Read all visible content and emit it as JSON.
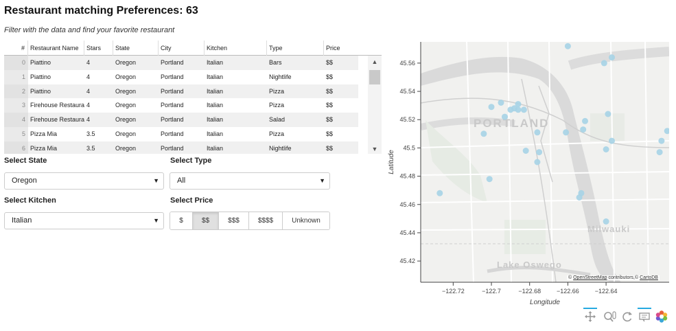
{
  "header": {
    "title": "Restaurant matching Preferences: 63",
    "subtitle": "Filter with the data and find your favorite restaurant"
  },
  "table": {
    "columns": [
      "#",
      "Restaurant Name",
      "Stars",
      "State",
      "City",
      "Kitchen",
      "Type",
      "Price"
    ],
    "rows": [
      {
        "idx": "0",
        "name": "Piattino",
        "stars": "4",
        "state": "Oregon",
        "city": "Portland",
        "kitchen": "Italian",
        "type": "Bars",
        "price": "$$"
      },
      {
        "idx": "1",
        "name": "Piattino",
        "stars": "4",
        "state": "Oregon",
        "city": "Portland",
        "kitchen": "Italian",
        "type": "Nightlife",
        "price": "$$"
      },
      {
        "idx": "2",
        "name": "Piattino",
        "stars": "4",
        "state": "Oregon",
        "city": "Portland",
        "kitchen": "Italian",
        "type": "Pizza",
        "price": "$$"
      },
      {
        "idx": "3",
        "name": "Firehouse Restaurant",
        "stars": "4",
        "state": "Oregon",
        "city": "Portland",
        "kitchen": "Italian",
        "type": "Pizza",
        "price": "$$"
      },
      {
        "idx": "4",
        "name": "Firehouse Restaurant",
        "stars": "4",
        "state": "Oregon",
        "city": "Portland",
        "kitchen": "Italian",
        "type": "Salad",
        "price": "$$"
      },
      {
        "idx": "5",
        "name": "Pizza Mia",
        "stars": "3.5",
        "state": "Oregon",
        "city": "Portland",
        "kitchen": "Italian",
        "type": "Pizza",
        "price": "$$"
      },
      {
        "idx": "6",
        "name": "Pizza Mia",
        "stars": "3.5",
        "state": "Oregon",
        "city": "Portland",
        "kitchen": "Italian",
        "type": "Nightlife",
        "price": "$$"
      }
    ]
  },
  "filters": {
    "state_label": "Select State",
    "state_value": "Oregon",
    "type_label": "Select Type",
    "type_value": "All",
    "kitchen_label": "Select Kitchen",
    "kitchen_value": "Italian",
    "price_label": "Select Price",
    "price_options": [
      "$",
      "$$",
      "$$$",
      "$$$$",
      "Unknown"
    ],
    "price_selected": "$$"
  },
  "map": {
    "place_labels": [
      "PORTLAND",
      "Milwauki",
      "Lake Oswego"
    ],
    "attribution_prefix": "© ",
    "attribution_link1": "OpenStreetMap",
    "attribution_mid": " contributors,© ",
    "attribution_link2": "CartoDB",
    "point_color": "#a6d3e6",
    "toolbar_icons": [
      "pan-icon",
      "wheel-zoom-icon",
      "reset-icon",
      "hover-icon",
      "bokeh-logo-icon"
    ]
  },
  "chart_data": {
    "type": "scatter",
    "title": "",
    "xlabel": "Longitude",
    "ylabel": "Latitude",
    "xlim": [
      -122.737,
      -122.607
    ],
    "ylim": [
      45.405,
      45.575
    ],
    "x_ticks": [
      -122.72,
      -122.7,
      -122.68,
      -122.66,
      -122.64
    ],
    "x_tick_labels": [
      "−122.72",
      "−122.7",
      "−122.68",
      "−122.66",
      "−122.64"
    ],
    "y_ticks": [
      45.42,
      45.44,
      45.46,
      45.48,
      45.5,
      45.52,
      45.54,
      45.56
    ],
    "y_tick_labels": [
      "45.42",
      "45.44",
      "45.46",
      "45.48",
      "45.5",
      "45.52",
      "45.54",
      "45.56"
    ],
    "grid": false,
    "legend": "none",
    "points": [
      {
        "x": -122.66,
        "y": 45.572
      },
      {
        "x": -122.641,
        "y": 45.56
      },
      {
        "x": -122.637,
        "y": 45.564
      },
      {
        "x": -122.695,
        "y": 45.532
      },
      {
        "x": -122.7,
        "y": 45.529
      },
      {
        "x": -122.686,
        "y": 45.531
      },
      {
        "x": -122.688,
        "y": 45.528
      },
      {
        "x": -122.686,
        "y": 45.527
      },
      {
        "x": -122.683,
        "y": 45.527
      },
      {
        "x": -122.69,
        "y": 45.527
      },
      {
        "x": -122.693,
        "y": 45.522
      },
      {
        "x": -122.639,
        "y": 45.524
      },
      {
        "x": -122.651,
        "y": 45.519
      },
      {
        "x": -122.652,
        "y": 45.513
      },
      {
        "x": -122.676,
        "y": 45.511
      },
      {
        "x": -122.661,
        "y": 45.511
      },
      {
        "x": -122.608,
        "y": 45.512
      },
      {
        "x": -122.704,
        "y": 45.51
      },
      {
        "x": -122.637,
        "y": 45.505
      },
      {
        "x": -122.611,
        "y": 45.505
      },
      {
        "x": -122.64,
        "y": 45.499
      },
      {
        "x": -122.612,
        "y": 45.497
      },
      {
        "x": -122.682,
        "y": 45.498
      },
      {
        "x": -122.675,
        "y": 45.497
      },
      {
        "x": -122.676,
        "y": 45.49
      },
      {
        "x": -122.701,
        "y": 45.478
      },
      {
        "x": -122.653,
        "y": 45.468
      },
      {
        "x": -122.654,
        "y": 45.465
      },
      {
        "x": -122.727,
        "y": 45.468
      },
      {
        "x": -122.64,
        "y": 45.448
      }
    ]
  }
}
